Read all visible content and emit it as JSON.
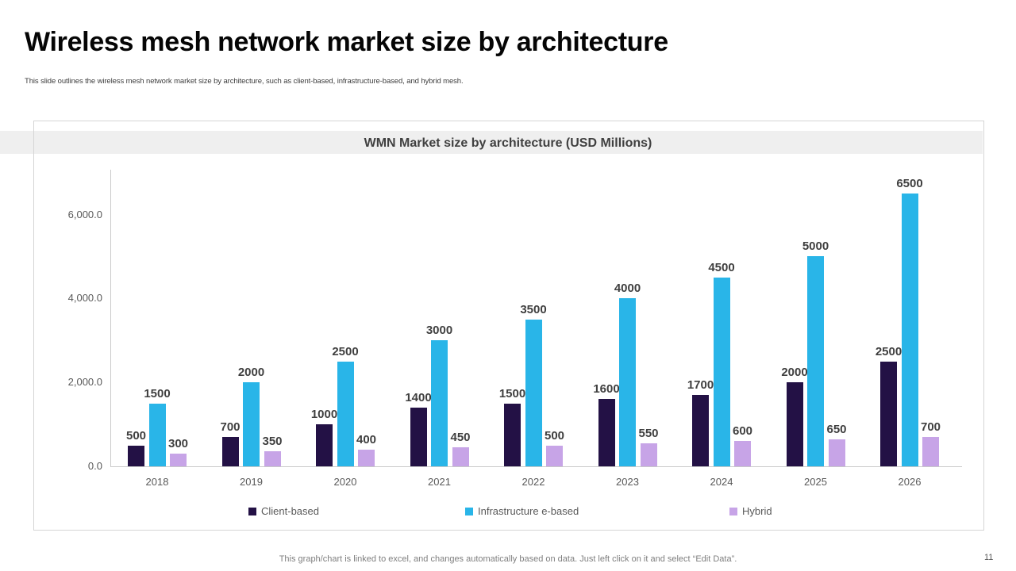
{
  "slide": {
    "title": "Wireless mesh network market size by architecture",
    "subtitle": "This slide outlines the wireless mesh network market size by architecture, such as client-based, infrastructure-based, and hybrid mesh.",
    "footer": "This graph/chart is linked to excel, and changes automatically based on data. Just left click on it and select “Edit Data”.",
    "page_number": "11"
  },
  "chart_data": {
    "type": "bar",
    "title": "WMN Market size by architecture (USD Millions)",
    "categories": [
      "2018",
      "2019",
      "2020",
      "2021",
      "2022",
      "2023",
      "2024",
      "2025",
      "2026"
    ],
    "series": [
      {
        "name": "Client-based",
        "color": "#231145",
        "values": [
          500,
          700,
          1000,
          1400,
          1500,
          1600,
          1700,
          2000,
          2500
        ]
      },
      {
        "name": "Infrastructure e-based",
        "color": "#29b5e8",
        "values": [
          1500,
          2000,
          2500,
          3000,
          3500,
          4000,
          4500,
          5000,
          6500
        ]
      },
      {
        "name": "Hybrid",
        "color": "#c7a4e7",
        "values": [
          300,
          350,
          400,
          450,
          500,
          550,
          600,
          650,
          700
        ]
      }
    ],
    "yticks": [
      {
        "value": 0,
        "label": "0.0"
      },
      {
        "value": 2000,
        "label": "2,000.0"
      },
      {
        "value": 4000,
        "label": "4,000.0"
      },
      {
        "value": 6000,
        "label": "6,000.0"
      }
    ],
    "ylim": [
      0,
      7000
    ],
    "xlabel": "",
    "ylabel": "",
    "grid": false,
    "data_labels": true,
    "legend_position": "bottom"
  }
}
